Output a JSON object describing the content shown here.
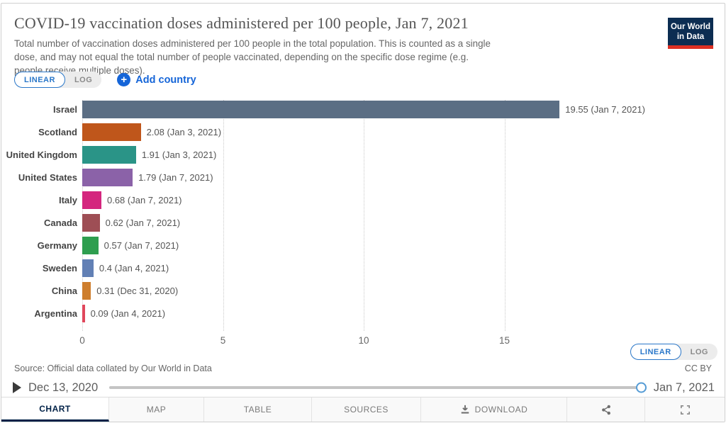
{
  "header": {
    "title": "COVID-19 vaccination doses administered per 100 people, Jan 7, 2021",
    "subtitle": "Total number of vaccination doses administered per 100 people in the total population. This is counted as a single dose, and may not equal the total number of people vaccinated, depending on the specific dose regime (e.g. people receive multiple doses).",
    "logo": {
      "line1": "Our World",
      "line2": "in Data",
      "bg_color": "#0c2d52",
      "bar_color": "#dc3023"
    }
  },
  "controls": {
    "scale_linear_label": "LINEAR",
    "scale_log_label": "LOG",
    "scale_selected": "LINEAR",
    "add_country_label": "Add country",
    "plus_glyph": "+",
    "accent_blue": "#1565d8"
  },
  "chart_data": {
    "type": "bar",
    "orientation": "horizontal",
    "title": "COVID-19 vaccination doses administered per 100 people, Jan 7, 2021",
    "categories": [
      "Israel",
      "Scotland",
      "United Kingdom",
      "United States",
      "Italy",
      "Canada",
      "Germany",
      "Sweden",
      "China",
      "Argentina"
    ],
    "values": [
      19.55,
      2.08,
      1.91,
      1.79,
      0.68,
      0.62,
      0.57,
      0.4,
      0.31,
      0.09
    ],
    "bar_labels": [
      "19.55 (Jan 7, 2021)",
      "2.08 (Jan 3, 2021)",
      "1.91 (Jan 3, 2021)",
      "1.79 (Jan 7, 2021)",
      "0.68 (Jan 7, 2021)",
      "0.62 (Jan 7, 2021)",
      "0.57 (Jan 7, 2021)",
      "0.4 (Jan 4, 2021)",
      "0.31 (Dec 31, 2020)",
      "0.09 (Jan 4, 2021)"
    ],
    "bar_colors": [
      "#5b6e84",
      "#bf561b",
      "#2a9487",
      "#8b62a8",
      "#d4267e",
      "#9e4e55",
      "#2e9e4f",
      "#6280b5",
      "#ce7e2d",
      "#e0475c"
    ],
    "xlim": [
      0,
      20
    ],
    "xticks": [
      0,
      5,
      10,
      15
    ],
    "grid": "dotted-vertical",
    "legend_position": "none"
  },
  "footer": {
    "source": "Source: Official data collated by Our World in Data",
    "license": "CC BY",
    "timeline": {
      "start_date": "Dec 13, 2020",
      "end_date": "Jan 7, 2021",
      "handle_position": "end"
    },
    "tabs": [
      {
        "label": "CHART",
        "active": true
      },
      {
        "label": "MAP",
        "active": false
      },
      {
        "label": "TABLE",
        "active": false
      },
      {
        "label": "SOURCES",
        "active": false
      },
      {
        "label": "DOWNLOAD",
        "active": false
      },
      {
        "label": "",
        "icon": "share-icon",
        "active": false
      },
      {
        "label": "",
        "icon": "fullscreen-icon",
        "active": false
      }
    ]
  }
}
